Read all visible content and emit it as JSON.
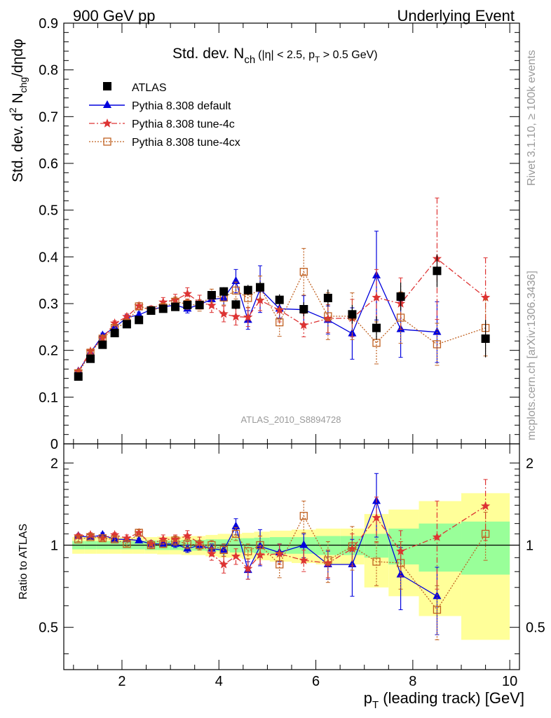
{
  "header": {
    "left": "900 GeV pp",
    "right": "Underlying Event"
  },
  "side_labels": {
    "rivet": "Rivet 3.1.10, ≥ 100k events",
    "mcplots": "mcplots.cern.ch [arXiv:1306.3436]"
  },
  "plot_title": {
    "main": "Std. dev. N",
    "sub": "ch",
    "cut_a": "(|η| < 2.5, p",
    "cut_sub": "T",
    "cut_b": " > 0.5 GeV)"
  },
  "y_title": {
    "a": "Std. dev. d",
    "sup": "2",
    "b": " N",
    "sub": "chg",
    "c": "/dηdφ"
  },
  "ratio_y_title": "Ratio to ATLAS",
  "x_title": {
    "a": "p",
    "sub": "T",
    "b": " (leading track) [GeV]"
  },
  "analysis_label": "ATLAS_2010_S8894728",
  "colors": {
    "atlas": "#000000",
    "default": "#0000dd",
    "tune4c": "#dd3333",
    "tune4cx": "#c06020",
    "band_green": "#99ff99",
    "band_yellow": "#ffff99"
  },
  "chart_data": {
    "type": "scatter",
    "xlim": [
      0.8,
      10.2
    ],
    "ylim": [
      0,
      0.9
    ],
    "ratio_ylim": [
      0.35,
      2.35
    ],
    "x_ticks": [
      2,
      4,
      6,
      8,
      10
    ],
    "y_ticks": [
      0,
      0.1,
      0.2,
      0.3,
      0.4,
      0.5,
      0.6,
      0.7,
      0.8,
      0.9
    ],
    "ratio_ticks": [
      0.5,
      1,
      2
    ],
    "legend_position": "top-left",
    "x": [
      1.1,
      1.35,
      1.6,
      1.85,
      2.1,
      2.35,
      2.6,
      2.85,
      3.1,
      3.35,
      3.6,
      3.85,
      4.1,
      4.35,
      4.6,
      4.85,
      5.25,
      5.75,
      6.25,
      6.75,
      7.25,
      7.75,
      8.5,
      9.5
    ],
    "series": [
      {
        "name": "ATLAS",
        "values": [
          0.144,
          0.182,
          0.212,
          0.237,
          0.256,
          0.265,
          0.285,
          0.289,
          0.293,
          0.297,
          0.297,
          0.318,
          0.326,
          0.298,
          0.329,
          0.335,
          0.308,
          0.288,
          0.312,
          0.277,
          0.248,
          0.315,
          0.37,
          0.225
        ],
        "errors": [
          0.003,
          0.003,
          0.003,
          0.004,
          0.004,
          0.004,
          0.005,
          0.005,
          0.006,
          0.006,
          0.007,
          0.008,
          0.009,
          0.01,
          0.011,
          0.012,
          0.012,
          0.015,
          0.018,
          0.02,
          0.025,
          0.03,
          0.035,
          0.04
        ],
        "ratio_band_green": [
          0.035,
          0.035,
          0.035,
          0.035,
          0.035,
          0.035,
          0.04,
          0.04,
          0.04,
          0.045,
          0.045,
          0.05,
          0.05,
          0.06,
          0.06,
          0.065,
          0.07,
          0.07,
          0.08,
          0.08,
          0.1,
          0.15,
          0.2,
          0.22
        ],
        "ratio_band_yellow": [
          0.07,
          0.07,
          0.07,
          0.07,
          0.07,
          0.07,
          0.07,
          0.075,
          0.075,
          0.08,
          0.08,
          0.09,
          0.1,
          0.1,
          0.11,
          0.12,
          0.13,
          0.14,
          0.15,
          0.15,
          0.3,
          0.35,
          0.45,
          0.55
        ]
      },
      {
        "name": "Pythia 8.308 default",
        "values": [
          0.155,
          0.195,
          0.232,
          0.249,
          0.27,
          0.276,
          0.287,
          0.293,
          0.297,
          0.289,
          0.298,
          0.309,
          0.312,
          0.348,
          0.265,
          0.331,
          0.289,
          0.287,
          0.265,
          0.236,
          0.36,
          0.245,
          0.239,
          null
        ],
        "errors": [
          0.004,
          0.004,
          0.005,
          0.005,
          0.006,
          0.006,
          0.007,
          0.007,
          0.008,
          0.009,
          0.01,
          0.012,
          0.015,
          0.025,
          0.02,
          0.05,
          0.02,
          0.03,
          0.03,
          0.055,
          0.095,
          0.06,
          0.065,
          null
        ],
        "ratio": [
          1.08,
          1.07,
          1.09,
          1.05,
          1.05,
          1.04,
          1.01,
          1.01,
          1.01,
          0.97,
          1.0,
          0.97,
          0.96,
          1.17,
          0.81,
          0.99,
          0.94,
          1.0,
          0.85,
          0.85,
          1.45,
          0.78,
          0.65,
          null
        ],
        "ratio_errors": [
          0.02,
          0.02,
          0.02,
          0.02,
          0.02,
          0.02,
          0.03,
          0.03,
          0.03,
          0.03,
          0.03,
          0.04,
          0.05,
          0.08,
          0.06,
          0.15,
          0.07,
          0.1,
          0.1,
          0.2,
          0.38,
          0.2,
          0.18,
          null
        ]
      },
      {
        "name": "Pythia 8.308 tune-4c",
        "values": [
          0.155,
          0.198,
          0.226,
          0.258,
          0.272,
          0.295,
          0.287,
          0.303,
          0.308,
          0.321,
          0.303,
          0.296,
          0.278,
          0.272,
          0.271,
          0.307,
          0.286,
          0.254,
          0.268,
          0.269,
          0.313,
          0.3,
          0.396,
          0.313
        ],
        "errors": [
          0.004,
          0.004,
          0.005,
          0.005,
          0.006,
          0.007,
          0.008,
          0.01,
          0.012,
          0.013,
          0.015,
          0.015,
          0.017,
          0.018,
          0.02,
          0.022,
          0.025,
          0.025,
          0.03,
          0.04,
          0.06,
          0.055,
          0.13,
          0.085
        ],
        "ratio": [
          1.08,
          1.09,
          1.06,
          1.09,
          1.06,
          1.11,
          1.01,
          1.05,
          1.05,
          1.08,
          1.02,
          0.93,
          0.85,
          0.91,
          0.82,
          0.92,
          0.93,
          0.88,
          0.86,
          0.97,
          1.26,
          0.95,
          1.07,
          1.39
        ],
        "ratio_errors": [
          0.02,
          0.02,
          0.02,
          0.02,
          0.03,
          0.03,
          0.03,
          0.04,
          0.04,
          0.05,
          0.05,
          0.05,
          0.06,
          0.06,
          0.07,
          0.07,
          0.08,
          0.08,
          0.1,
          0.13,
          0.24,
          0.18,
          0.38,
          0.35
        ]
      },
      {
        "name": "Pythia 8.308 tune-4cx",
        "values": [
          0.151,
          0.195,
          0.225,
          0.248,
          0.259,
          0.294,
          0.286,
          0.292,
          0.304,
          0.299,
          0.296,
          0.317,
          0.313,
          0.328,
          0.312,
          0.334,
          0.26,
          0.368,
          0.273,
          0.273,
          0.216,
          0.27,
          0.213,
          0.248
        ],
        "errors": [
          0.004,
          0.004,
          0.005,
          0.005,
          0.006,
          0.007,
          0.008,
          0.009,
          0.01,
          0.011,
          0.012,
          0.014,
          0.016,
          0.018,
          0.02,
          0.025,
          0.03,
          0.05,
          0.05,
          0.05,
          0.045,
          0.055,
          0.045,
          0.06
        ],
        "ratio": [
          1.05,
          1.07,
          1.06,
          1.05,
          1.01,
          1.11,
          1.0,
          1.01,
          1.04,
          1.01,
          1.0,
          1.0,
          0.96,
          1.1,
          0.95,
          1.0,
          0.85,
          1.28,
          0.88,
          0.99,
          0.87,
          0.86,
          0.58,
          1.1
        ],
        "ratio_errors": [
          0.02,
          0.02,
          0.02,
          0.02,
          0.02,
          0.03,
          0.03,
          0.03,
          0.04,
          0.04,
          0.04,
          0.04,
          0.05,
          0.06,
          0.06,
          0.08,
          0.09,
          0.17,
          0.15,
          0.18,
          0.16,
          0.17,
          0.13,
          0.22
        ]
      }
    ]
  }
}
